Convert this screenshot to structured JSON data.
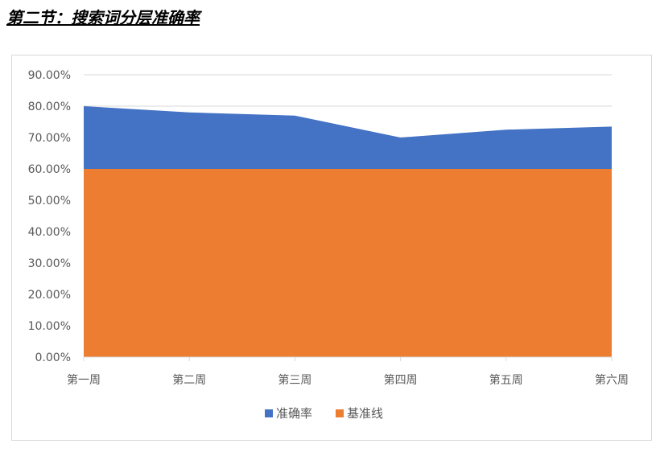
{
  "page": {
    "heading": "第二节：搜索词分层准确率"
  },
  "chart_data": {
    "type": "area",
    "categories": [
      "第一周",
      "第二周",
      "第三周",
      "第四周",
      "第五周",
      "第六周"
    ],
    "series": [
      {
        "name": "准确率",
        "values": [
          0.8,
          0.78,
          0.77,
          0.7,
          0.725,
          0.735
        ],
        "color": "#4472C4"
      },
      {
        "name": "基准线",
        "values": [
          0.6,
          0.6,
          0.6,
          0.6,
          0.6,
          0.6
        ],
        "color": "#ED7D31"
      }
    ],
    "y_ticks": [
      "0.00%",
      "10.00%",
      "20.00%",
      "30.00%",
      "40.00%",
      "50.00%",
      "60.00%",
      "70.00%",
      "80.00%",
      "90.00%"
    ],
    "ylim": [
      0,
      0.9
    ],
    "grid": true,
    "legend_position": "bottom",
    "gridline_color": "#d9d9d9"
  }
}
